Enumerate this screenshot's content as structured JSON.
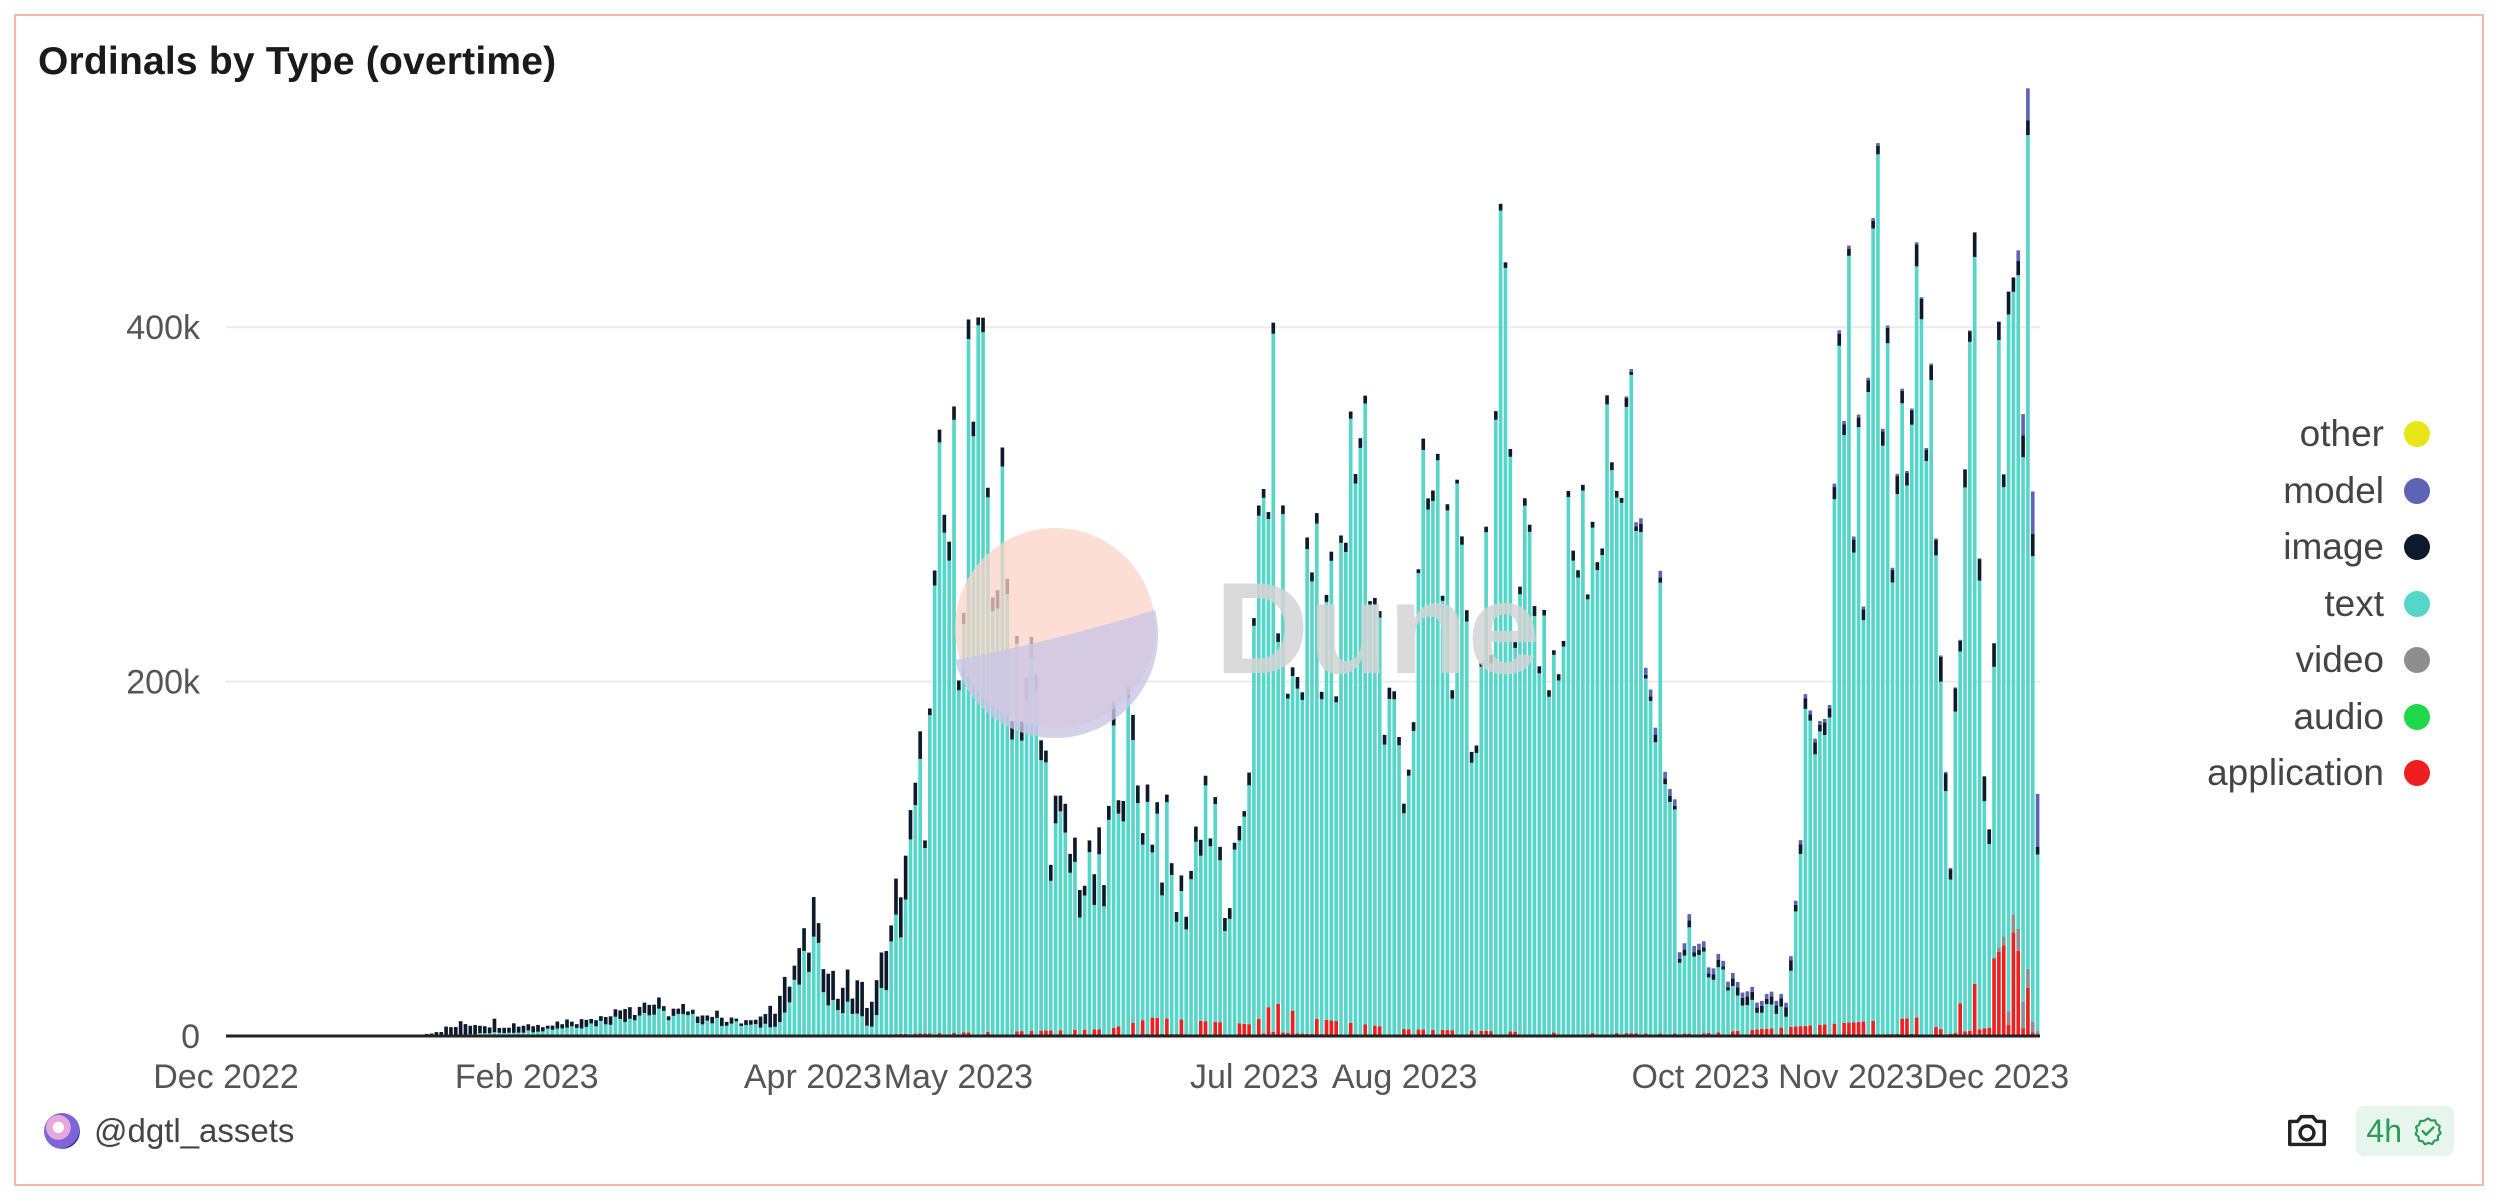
{
  "title": "Ordinals by Type (overtime)",
  "author": "@dgtl_assets",
  "freshness": "4h",
  "watermark": "Dune",
  "colors": {
    "other": "#e6e619",
    "model": "#5d63b5",
    "image": "#0c1a2b",
    "text": "#55d6c9",
    "video": "#8e8e8e",
    "audio": "#1fd84a",
    "application": "#ef1f1f",
    "grid": "#ececec",
    "axis": "#222222"
  },
  "legend": [
    {
      "key": "other",
      "label": "other"
    },
    {
      "key": "model",
      "label": "model"
    },
    {
      "key": "image",
      "label": "image"
    },
    {
      "key": "text",
      "label": "text"
    },
    {
      "key": "video",
      "label": "video"
    },
    {
      "key": "audio",
      "label": "audio"
    },
    {
      "key": "application",
      "label": "application"
    }
  ],
  "chart_data": {
    "type": "bar",
    "stacked": true,
    "title": "Ordinals by Type (overtime)",
    "xlabel": "",
    "ylabel": "",
    "ylim": [
      0,
      500000
    ],
    "yticks": [
      {
        "value": 0,
        "label": "0"
      },
      {
        "value": 200000,
        "label": "200k"
      },
      {
        "value": 400000,
        "label": "400k"
      }
    ],
    "x_start": "2022-12-01",
    "x_end": "2023-12-10",
    "xticks": [
      {
        "date": "2022-12-01",
        "label": "Dec 2022"
      },
      {
        "date": "2023-02-01",
        "label": "Feb 2023"
      },
      {
        "date": "2023-04-01",
        "label": "Apr 2023"
      },
      {
        "date": "2023-05-01",
        "label": "May 2023"
      },
      {
        "date": "2023-07-01",
        "label": "Jul 2023"
      },
      {
        "date": "2023-08-01",
        "label": "Aug 2023"
      },
      {
        "date": "2023-10-01",
        "label": "Oct 2023"
      },
      {
        "date": "2023-11-01",
        "label": "Nov 2023"
      },
      {
        "date": "2023-12-01",
        "label": "Dec 2023"
      }
    ],
    "grid": true,
    "legend_position": "right",
    "stack_order": [
      "application",
      "audio",
      "video",
      "text",
      "image",
      "model",
      "other"
    ],
    "series_anchors": {
      "text": [
        [
          "2022-12-01",
          0
        ],
        [
          "2023-01-15",
          500
        ],
        [
          "2023-02-01",
          3000
        ],
        [
          "2023-02-15",
          8000
        ],
        [
          "2023-02-25",
          15000
        ],
        [
          "2023-03-05",
          12000
        ],
        [
          "2023-03-20",
          6000
        ],
        [
          "2023-03-25",
          9000
        ],
        [
          "2023-04-01",
          55000
        ],
        [
          "2023-04-05",
          20000
        ],
        [
          "2023-04-10",
          15000
        ],
        [
          "2023-04-12",
          5000
        ],
        [
          "2023-04-14",
          12000
        ],
        [
          "2023-04-20",
          90000
        ],
        [
          "2023-04-25",
          180000
        ],
        [
          "2023-04-27",
          300000
        ],
        [
          "2023-05-01",
          320000
        ],
        [
          "2023-05-03",
          395000
        ],
        [
          "2023-05-07",
          340000
        ],
        [
          "2023-05-12",
          260000
        ],
        [
          "2023-05-16",
          210000
        ],
        [
          "2023-05-21",
          120000
        ],
        [
          "2023-05-26",
          95000
        ],
        [
          "2023-05-31",
          85000
        ],
        [
          "2023-06-03",
          200000
        ],
        [
          "2023-06-06",
          160000
        ],
        [
          "2023-06-12",
          120000
        ],
        [
          "2023-06-16",
          70000
        ],
        [
          "2023-06-21",
          150000
        ],
        [
          "2023-06-26",
          60000
        ],
        [
          "2023-07-01",
          220000
        ],
        [
          "2023-07-04",
          380000
        ],
        [
          "2023-07-09",
          200000
        ],
        [
          "2023-07-14",
          320000
        ],
        [
          "2023-07-18",
          220000
        ],
        [
          "2023-07-23",
          420000
        ],
        [
          "2023-07-28",
          200000
        ],
        [
          "2023-08-02",
          180000
        ],
        [
          "2023-08-06",
          330000
        ],
        [
          "2023-08-11",
          300000
        ],
        [
          "2023-08-15",
          190000
        ],
        [
          "2023-08-21",
          410000
        ],
        [
          "2023-08-27",
          300000
        ],
        [
          "2023-09-02",
          230000
        ],
        [
          "2023-09-07",
          380000
        ],
        [
          "2023-09-12",
          330000
        ],
        [
          "2023-09-16",
          440000
        ],
        [
          "2023-09-20",
          200000
        ],
        [
          "2023-09-24",
          230000
        ],
        [
          "2023-09-27",
          60000
        ],
        [
          "2023-10-01",
          50000
        ],
        [
          "2023-10-07",
          30000
        ],
        [
          "2023-10-12",
          15000
        ],
        [
          "2023-10-19",
          10000
        ],
        [
          "2023-10-21",
          70000
        ],
        [
          "2023-10-23",
          180000
        ],
        [
          "2023-10-27",
          150000
        ],
        [
          "2023-10-31",
          430000
        ],
        [
          "2023-11-04",
          250000
        ],
        [
          "2023-11-07",
          500000
        ],
        [
          "2023-11-10",
          300000
        ],
        [
          "2023-11-14",
          470000
        ],
        [
          "2023-11-19",
          330000
        ],
        [
          "2023-11-22",
          80000
        ],
        [
          "2023-11-26",
          480000
        ],
        [
          "2023-11-30",
          100000
        ],
        [
          "2023-12-02",
          390000
        ],
        [
          "2023-12-06",
          330000
        ],
        [
          "2023-12-08",
          430000
        ],
        [
          "2023-12-10",
          130000
        ]
      ],
      "image": [
        [
          "2023-01-10",
          500
        ],
        [
          "2023-01-20",
          8000
        ],
        [
          "2023-02-05",
          4000
        ],
        [
          "2023-02-20",
          6000
        ],
        [
          "2023-03-20",
          3000
        ],
        [
          "2023-03-28",
          20000
        ],
        [
          "2023-04-01",
          18000
        ],
        [
          "2023-04-05",
          15000
        ],
        [
          "2023-04-20",
          20000
        ],
        [
          "2023-04-25",
          8000
        ],
        [
          "2023-05-10",
          10000
        ],
        [
          "2023-05-20",
          12000
        ],
        [
          "2023-06-01",
          15000
        ],
        [
          "2023-06-10",
          8000
        ],
        [
          "2023-07-01",
          6000
        ],
        [
          "2023-08-01",
          5000
        ],
        [
          "2023-09-01",
          5000
        ],
        [
          "2023-10-01",
          3000
        ],
        [
          "2023-11-01",
          6000
        ],
        [
          "2023-11-20",
          12000
        ],
        [
          "2023-12-10",
          10000
        ]
      ],
      "application": [
        [
          "2023-04-01",
          0
        ],
        [
          "2023-06-01",
          3000
        ],
        [
          "2023-06-10",
          8000
        ],
        [
          "2023-07-01",
          5000
        ],
        [
          "2023-07-05",
          15000
        ],
        [
          "2023-07-12",
          8000
        ],
        [
          "2023-08-01",
          3000
        ],
        [
          "2023-09-01",
          1500
        ],
        [
          "2023-10-01",
          1000
        ],
        [
          "2023-11-15",
          8000
        ],
        [
          "2023-11-20",
          3000
        ],
        [
          "2023-12-05",
          45000
        ],
        [
          "2023-12-10",
          5000
        ]
      ],
      "model": [
        [
          "2023-09-15",
          0
        ],
        [
          "2023-09-20",
          4000
        ],
        [
          "2023-12-05",
          0
        ],
        [
          "2023-12-10",
          30000
        ]
      ],
      "video": [
        [
          "2023-12-01",
          0
        ],
        [
          "2023-12-07",
          15000
        ],
        [
          "2023-12-10",
          2000
        ]
      ]
    }
  }
}
